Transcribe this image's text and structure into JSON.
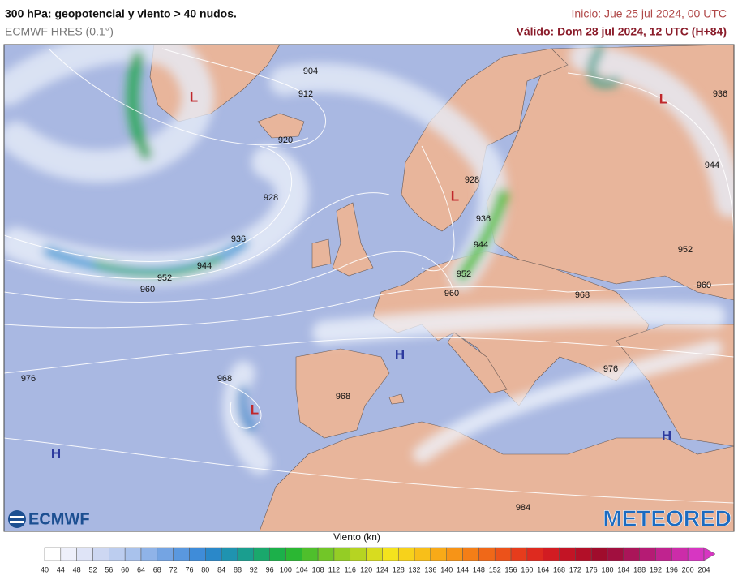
{
  "header": {
    "title": "300 hPa: geopotencial y viento > 40 nudos.",
    "subtitle": "ECMWF HRES (0.1°)",
    "init": "Inicio: Jue 25 jul 2024, 00 UTC",
    "valid": "Válido: Dom 28 jul 2024, 12 UTC (H+84)"
  },
  "map": {
    "contour_labels": [
      "904",
      "912",
      "920",
      "928",
      "936",
      "944",
      "952",
      "960",
      "928",
      "936",
      "944",
      "952",
      "960",
      "968",
      "952",
      "960",
      "944",
      "936",
      "976",
      "968",
      "968",
      "976",
      "984"
    ],
    "centers": [
      "L",
      "L",
      "L",
      "L",
      "H",
      "H",
      "H"
    ]
  },
  "logos": {
    "left": "ECMWF",
    "right": "METEORED"
  },
  "legend": {
    "title": "Viento (kn)",
    "ticks": [
      40,
      44,
      48,
      52,
      56,
      60,
      64,
      68,
      72,
      76,
      80,
      84,
      88,
      92,
      96,
      100,
      104,
      108,
      112,
      116,
      120,
      124,
      128,
      132,
      136,
      140,
      144,
      148,
      152,
      156,
      160,
      164,
      168,
      172,
      176,
      180,
      184,
      188,
      192,
      196,
      200,
      204
    ],
    "colors": [
      "#ffffff",
      "#eef0fb",
      "#dfe4f7",
      "#cdd7f2",
      "#bccdef",
      "#a9c2ec",
      "#8fb3e8",
      "#74a4e3",
      "#5a98df",
      "#3f8cd9",
      "#2a88c9",
      "#1f93b0",
      "#1a9e8f",
      "#1aa86c",
      "#1cb04a",
      "#2bb733",
      "#4fbf2c",
      "#72c628",
      "#94cd25",
      "#b6d422",
      "#d8dc1f",
      "#f4e31d",
      "#f7d21b",
      "#f8bf19",
      "#f8aa18",
      "#f79417",
      "#f47e17",
      "#f06818",
      "#ec521a",
      "#e63c1c",
      "#de2a1f",
      "#d21c22",
      "#c31425",
      "#b20f28",
      "#a00c2c",
      "#a10f3f",
      "#aa1559",
      "#b51b74",
      "#c0238f",
      "#cc2ca9",
      "#d736c2"
    ]
  }
}
